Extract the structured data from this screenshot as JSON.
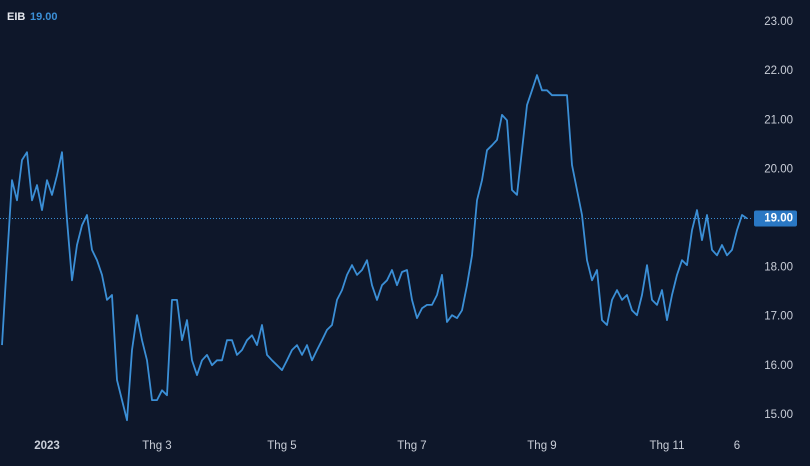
{
  "chart_data": {
    "type": "line",
    "title": "EIB",
    "last_label": "19.00",
    "color": "#3b8fd6",
    "categories": [
      null,
      null,
      null,
      null,
      null,
      null,
      null,
      null,
      null,
      "2023",
      null,
      null,
      null,
      null,
      null,
      null,
      null,
      null,
      null,
      null,
      null,
      null,
      null,
      null,
      null,
      null,
      null,
      null,
      null,
      null,
      null,
      "Thg 3",
      null,
      null,
      null,
      null,
      null,
      null,
      null,
      null,
      null,
      null,
      null,
      null,
      null,
      null,
      null,
      null,
      null,
      null,
      null,
      null,
      null,
      null,
      null,
      null,
      "Thg 5",
      null,
      null,
      null,
      null,
      null,
      null,
      null,
      null,
      null,
      null,
      null,
      null,
      null,
      null,
      null,
      null,
      null,
      null,
      null,
      null,
      null,
      null,
      null,
      null,
      null,
      "Thg 7",
      null,
      null,
      null,
      null,
      null,
      null,
      null,
      null,
      null,
      null,
      null,
      null,
      null,
      null,
      null,
      null,
      null,
      null,
      null,
      null,
      null,
      null,
      null,
      null,
      null,
      "Thg 9",
      null,
      null,
      null,
      null,
      null,
      null,
      null,
      null,
      null,
      null,
      null,
      null,
      null,
      null,
      null,
      null,
      null,
      null,
      null,
      null,
      null,
      null,
      null,
      null,
      "Thg 11",
      null,
      null,
      null,
      null,
      null,
      null,
      null,
      null,
      null,
      null,
      null,
      null,
      null,
      "6",
      null,
      null
    ],
    "values": [
      16.42,
      18.15,
      19.78,
      19.37,
      20.19,
      20.35,
      19.37,
      19.68,
      19.17,
      19.78,
      19.48,
      19.88,
      20.35,
      18.97,
      17.74,
      18.46,
      18.86,
      19.07,
      18.36,
      18.15,
      17.85,
      17.34,
      17.44,
      15.71,
      15.3,
      14.89,
      16.32,
      17.03,
      16.52,
      16.11,
      15.3,
      15.3,
      15.5,
      15.4,
      17.34,
      17.34,
      16.52,
      16.93,
      16.11,
      15.81,
      16.11,
      16.22,
      16.01,
      16.11,
      16.11,
      16.52,
      16.52,
      16.22,
      16.32,
      16.52,
      16.62,
      16.42,
      16.83,
      16.22,
      16.11,
      16.01,
      15.91,
      16.11,
      16.32,
      16.42,
      16.22,
      16.42,
      16.11,
      16.32,
      16.52,
      16.73,
      16.83,
      17.34,
      17.54,
      17.85,
      18.05,
      17.85,
      17.95,
      18.15,
      17.64,
      17.34,
      17.64,
      17.74,
      17.95,
      17.64,
      17.91,
      17.95,
      17.34,
      16.97,
      17.17,
      17.24,
      17.24,
      17.44,
      17.85,
      16.89,
      17.03,
      16.97,
      17.13,
      17.64,
      18.25,
      19.37,
      19.78,
      20.39,
      20.49,
      20.6,
      21.11,
      21.0,
      19.58,
      19.48,
      20.39,
      21.31,
      21.61,
      21.92,
      21.61,
      21.61,
      21.51,
      21.51,
      21.51,
      21.51,
      20.09,
      19.58,
      19.07,
      18.15,
      17.74,
      17.95,
      16.93,
      16.83,
      17.34,
      17.54,
      17.34,
      17.44,
      17.13,
      17.03,
      17.44,
      18.05,
      17.34,
      17.24,
      17.54,
      16.93,
      17.44,
      17.85,
      18.15,
      18.05,
      18.76,
      19.17,
      18.56,
      19.07,
      18.36,
      18.25,
      18.46,
      18.25,
      18.36,
      18.76,
      19.07,
      19.0
    ],
    "ylim": [
      14.65,
      23.45
    ],
    "yticks": [
      {
        "value": 15,
        "label": "15.00"
      },
      {
        "value": 16,
        "label": "16.00"
      },
      {
        "value": 17,
        "label": "17.00"
      },
      {
        "value": 18,
        "label": "18.00"
      },
      {
        "value": 19,
        "label": "19.00"
      },
      {
        "value": 20,
        "label": "20.00"
      },
      {
        "value": 21,
        "label": "21.00"
      },
      {
        "value": 22,
        "label": "22.00"
      },
      {
        "value": 23,
        "label": "23.00"
      }
    ]
  }
}
